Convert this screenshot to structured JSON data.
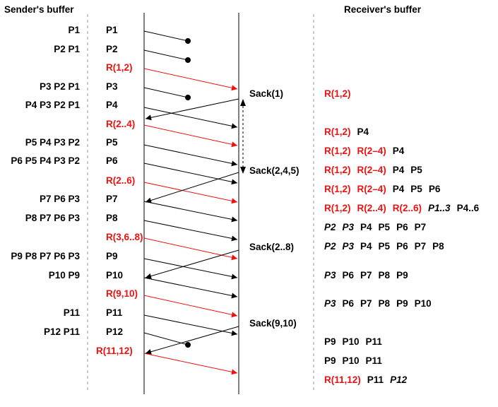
{
  "headers": {
    "sender": "Sender's buffer",
    "receiver": "Receiver's buffer"
  },
  "colors": {
    "black": "#000000",
    "red": "#ee1111",
    "dashed": "#999999"
  },
  "sender_rows": [
    {
      "buffer": "P1",
      "packet": "P1"
    },
    {
      "buffer": "P2 P1",
      "packet": "P2"
    },
    {
      "buffer": "",
      "packet": "R(1,2)",
      "redundant": true
    },
    {
      "buffer": "P3 P2 P1",
      "packet": "P3"
    },
    {
      "buffer": "P4 P3 P2 P1",
      "packet": "P4"
    },
    {
      "buffer": "",
      "packet": "R(2..4)",
      "redundant": true
    },
    {
      "buffer": "P5 P4 P3 P2",
      "packet": "P5"
    },
    {
      "buffer": "P6 P5 P4 P3 P2",
      "packet": "P6"
    },
    {
      "buffer": "",
      "packet": "R(2..6)",
      "redundant": true
    },
    {
      "buffer": "P7 P6 P3",
      "packet": "P7"
    },
    {
      "buffer": "P8 P7 P6 P3",
      "packet": "P8"
    },
    {
      "buffer": "",
      "packet": "R(3,6..8)",
      "redundant": true
    },
    {
      "buffer": "P9 P8 P7 P6 P3",
      "packet": "P9"
    },
    {
      "buffer": "P10 P9",
      "packet": "P10"
    },
    {
      "buffer": "",
      "packet": "R(9,10)",
      "redundant": true
    },
    {
      "buffer": "P11",
      "packet": "P11"
    },
    {
      "buffer": "P12 P11",
      "packet": "P12"
    },
    {
      "buffer": "",
      "packet": "R(11,12)",
      "redundant": true
    }
  ],
  "sacks": [
    "Sack(1)",
    "Sack(2,4,5)",
    "Sack(2..8)",
    "Sack(9,10)"
  ],
  "receiver_rows": [
    [
      {
        "t": "R(1,2)",
        "c": "red"
      }
    ],
    [
      {
        "t": "R(1,2)",
        "c": "red"
      },
      {
        "t": "P4"
      }
    ],
    [
      {
        "t": "R(1,2)",
        "c": "red"
      },
      {
        "t": "R(2–4)",
        "c": "red"
      },
      {
        "t": "P4"
      }
    ],
    [
      {
        "t": "R(1,2)",
        "c": "red"
      },
      {
        "t": "R(2–4)",
        "c": "red"
      },
      {
        "t": "P4"
      },
      {
        "t": "P5"
      }
    ],
    [
      {
        "t": "R(1,2)",
        "c": "red"
      },
      {
        "t": "R(2–4)",
        "c": "red"
      },
      {
        "t": "P4"
      },
      {
        "t": "P5"
      },
      {
        "t": "P6"
      }
    ],
    [
      {
        "t": "R(1,2)",
        "c": "red"
      },
      {
        "t": "R(2..4)",
        "c": "red"
      },
      {
        "t": "R(2..6)",
        "c": "red"
      },
      {
        "t": "P1..3",
        "i": true
      },
      {
        "t": "P4..6"
      }
    ],
    [
      {
        "t": "P2",
        "i": true
      },
      {
        "t": "P3",
        "i": true
      },
      {
        "t": "P4"
      },
      {
        "t": "P5"
      },
      {
        "t": "P6"
      },
      {
        "t": "P7"
      }
    ],
    [
      {
        "t": "P2",
        "i": true
      },
      {
        "t": "P3",
        "i": true
      },
      {
        "t": "P4"
      },
      {
        "t": "P5"
      },
      {
        "t": "P6"
      },
      {
        "t": "P7"
      },
      {
        "t": "P8"
      }
    ],
    [
      {
        "t": "P3",
        "i": true
      },
      {
        "t": "P6"
      },
      {
        "t": "P7"
      },
      {
        "t": "P8"
      },
      {
        "t": "P9"
      }
    ],
    [
      {
        "t": "P3",
        "i": true
      },
      {
        "t": "P6"
      },
      {
        "t": "P7"
      },
      {
        "t": "P8"
      },
      {
        "t": "P9"
      },
      {
        "t": "P10"
      }
    ],
    [
      {
        "t": "P9"
      },
      {
        "t": "P10"
      },
      {
        "t": "P11"
      }
    ],
    [
      {
        "t": "P9"
      },
      {
        "t": "P10"
      },
      {
        "t": "P11"
      }
    ],
    [
      {
        "t": "R(11,12)",
        "c": "red"
      },
      {
        "t": "P11"
      },
      {
        "t": "P12",
        "i": true
      }
    ]
  ]
}
